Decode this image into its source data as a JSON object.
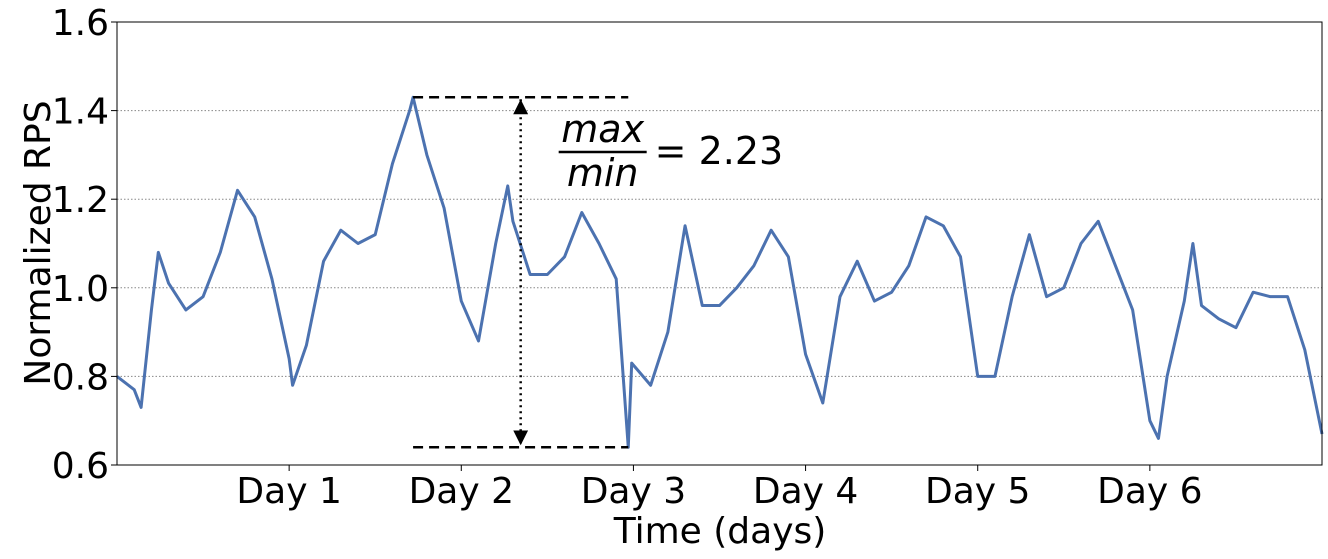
{
  "chart_data": {
    "type": "line",
    "xlabel": "Time (days)",
    "ylabel": "Normalized RPS",
    "x": [
      0,
      0.1,
      0.14,
      0.2,
      0.24,
      0.3,
      0.4,
      0.5,
      0.6,
      0.7,
      0.8,
      0.9,
      1.0,
      1.02,
      1.1,
      1.2,
      1.3,
      1.4,
      1.5,
      1.6,
      1.7,
      1.72,
      1.8,
      1.9,
      2.0,
      2.1,
      2.2,
      2.27,
      2.3,
      2.4,
      2.5,
      2.6,
      2.7,
      2.8,
      2.9,
      2.97,
      2.99,
      3.1,
      3.2,
      3.3,
      3.4,
      3.5,
      3.6,
      3.7,
      3.8,
      3.9,
      4.0,
      4.1,
      4.2,
      4.3,
      4.4,
      4.5,
      4.6,
      4.7,
      4.8,
      4.9,
      5.0,
      5.1,
      5.2,
      5.3,
      5.4,
      5.5,
      5.6,
      5.7,
      5.8,
      5.9,
      6.0,
      6.05,
      6.1,
      6.2,
      6.25,
      6.3,
      6.4,
      6.5,
      6.6,
      6.7,
      6.8,
      6.9,
      7.0
    ],
    "series": [
      {
        "name": "Normalized RPS",
        "color": "#4c72b0",
        "values": [
          0.8,
          0.77,
          0.73,
          0.95,
          1.08,
          1.01,
          0.95,
          0.98,
          1.08,
          1.22,
          1.16,
          1.02,
          0.84,
          0.78,
          0.87,
          1.06,
          1.13,
          1.1,
          1.12,
          1.28,
          1.4,
          1.43,
          1.3,
          1.18,
          0.97,
          0.88,
          1.1,
          1.23,
          1.15,
          1.03,
          1.03,
          1.07,
          1.17,
          1.1,
          1.02,
          0.64,
          0.83,
          0.78,
          0.9,
          1.14,
          0.96,
          0.96,
          1.0,
          1.05,
          1.13,
          1.07,
          0.85,
          0.74,
          0.98,
          1.06,
          0.97,
          0.99,
          1.05,
          1.16,
          1.14,
          1.07,
          0.8,
          0.8,
          0.98,
          1.12,
          0.98,
          1.0,
          1.1,
          1.15,
          1.05,
          0.95,
          0.7,
          0.66,
          0.8,
          0.97,
          1.1,
          0.96,
          0.93,
          0.91,
          0.99,
          0.98,
          0.98,
          0.86,
          0.67
        ]
      }
    ],
    "xlim": [
      0,
      7
    ],
    "xticks": [
      {
        "value": 1,
        "label": "Day 1"
      },
      {
        "value": 2,
        "label": "Day 2"
      },
      {
        "value": 3,
        "label": "Day 3"
      },
      {
        "value": 4,
        "label": "Day 4"
      },
      {
        "value": 5,
        "label": "Day 5"
      },
      {
        "value": 6,
        "label": "Day 6"
      }
    ],
    "ylim": [
      0.6,
      1.6
    ],
    "yticks": [
      0.6,
      0.8,
      {
        "value": 1.0,
        "label": "1.0"
      },
      1.2,
      1.4,
      1.6
    ],
    "grid": true,
    "annotation": {
      "numerator": "max",
      "denominator": "min",
      "text": "= 2.23"
    }
  }
}
